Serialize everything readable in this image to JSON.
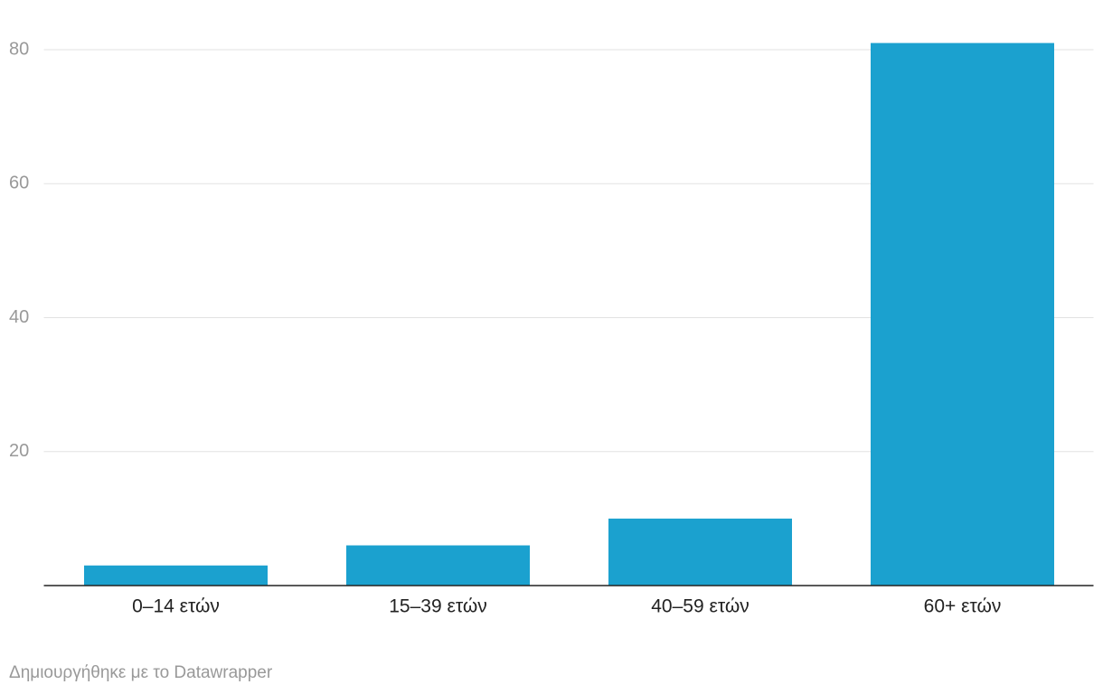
{
  "chart_data": {
    "type": "bar",
    "categories": [
      "0–14 ετών",
      "15–39 ετών",
      "40–59 ετών",
      "60+ ετών"
    ],
    "values": [
      3,
      6,
      10,
      81
    ],
    "color": "#1ba1cf",
    "ylim": [
      0,
      81
    ],
    "yticks": [
      20,
      40,
      60,
      80
    ],
    "grid": true,
    "credit": "Δημιουργήθηκε με το Datawrapper"
  }
}
